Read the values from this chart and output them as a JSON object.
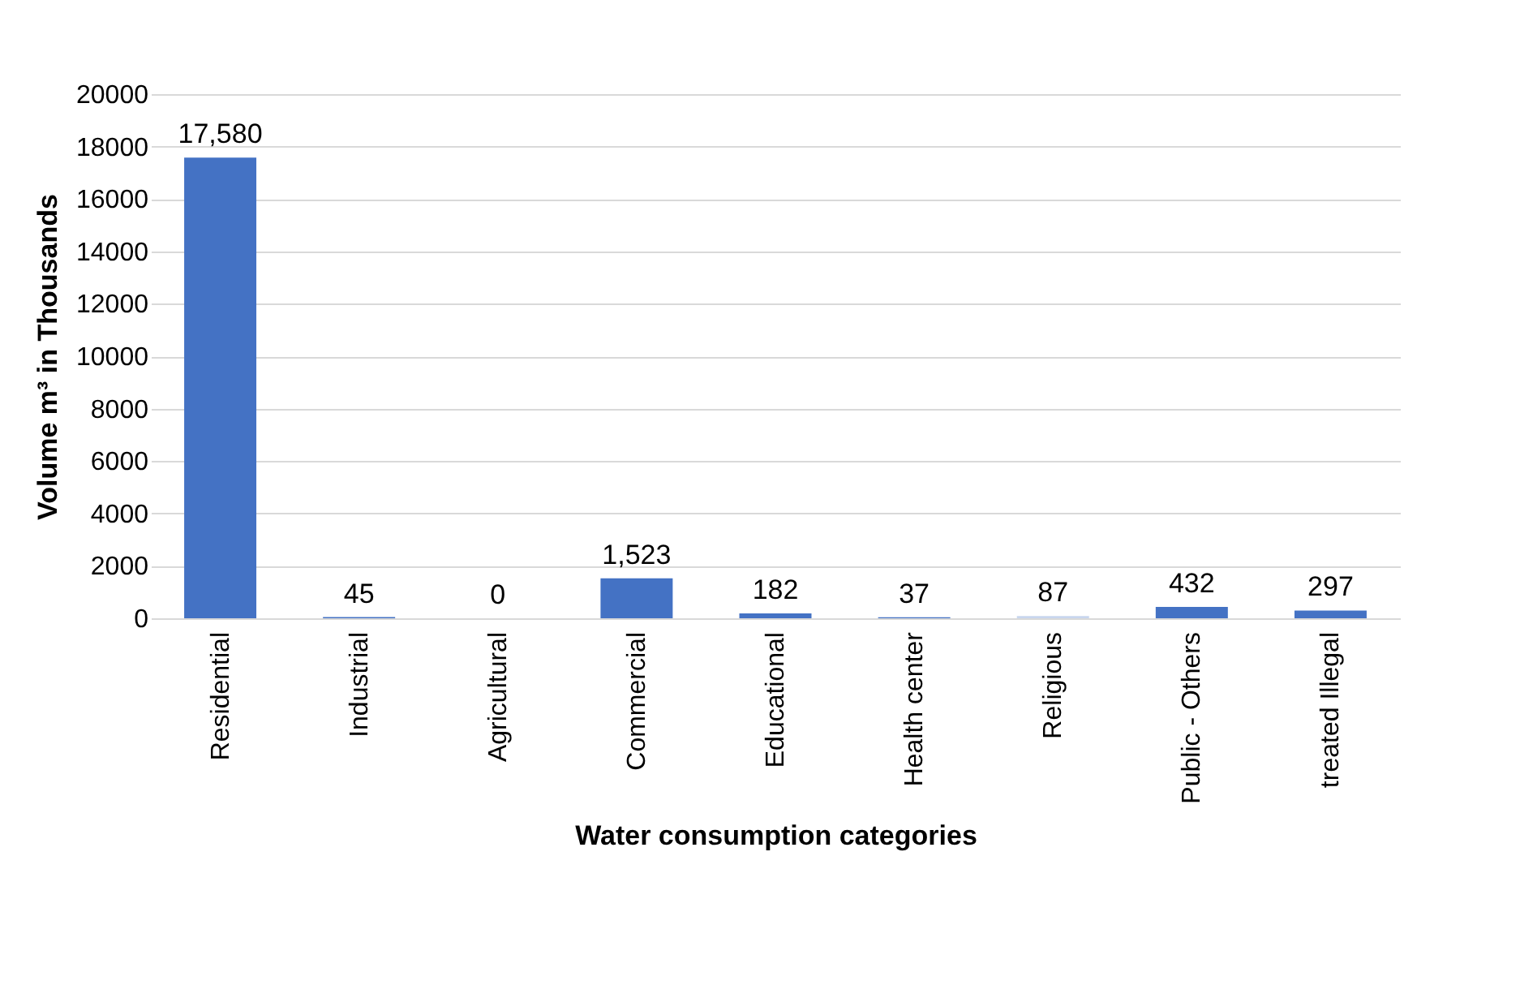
{
  "chart_data": {
    "type": "bar",
    "xlabel": "Water consumption categories",
    "ylabel": "Volume m³ in Thousands",
    "categories": [
      "Residential",
      "Industrial",
      "Agricultural",
      "Commercial",
      "Educational",
      "Health center",
      "Religious",
      "Public - Others",
      "treated Illegal"
    ],
    "values": [
      17580,
      45,
      0,
      1523,
      182,
      37,
      87,
      432,
      297
    ],
    "value_labels": [
      "17,580",
      "45",
      "0",
      "1,523",
      "182",
      "37",
      "87",
      "432",
      "297"
    ],
    "colors": [
      "#4472c4",
      "#4472c4",
      "#4472c4",
      "#4472c4",
      "#4472c4",
      "#4472c4",
      "#c9d6ee",
      "#4472c4",
      "#4472c4"
    ],
    "ylim": [
      0,
      20000
    ],
    "yticks": [
      0,
      2000,
      4000,
      6000,
      8000,
      10000,
      12000,
      14000,
      16000,
      18000,
      20000
    ],
    "grid": "y"
  }
}
